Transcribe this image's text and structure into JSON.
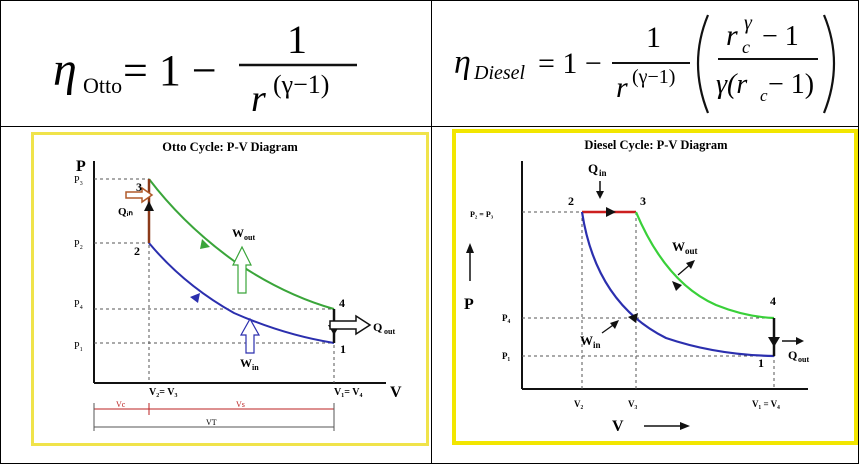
{
  "formulas": {
    "otto": {
      "eta": "η",
      "eta_sub": "Otto",
      "rhs": "= 1 −",
      "num": "1",
      "den_base": "r",
      "den_exp": "(γ−1)"
    },
    "diesel": {
      "eta": "η",
      "eta_sub": "Diesel",
      "rhs": "= 1 −",
      "num": "1",
      "den_base": "r",
      "den_exp": "(γ−1)",
      "paren_num_r": "r",
      "paren_num_sub": "c",
      "paren_num_sup": "γ",
      "paren_num_tail": "− 1",
      "paren_den": "γ(r",
      "paren_den_sub": "c",
      "paren_den_tail": " − 1)"
    }
  },
  "otto": {
    "title": "Otto Cycle: P-V Diagram",
    "p_axis": "P",
    "v_axis": "V",
    "p3": "P₃",
    "p2": "P₂",
    "p4": "P₄",
    "p1": "P₁",
    "pt1": "1",
    "pt2": "2",
    "pt3": "3",
    "pt4": "4",
    "qin": "Qᵢₙ",
    "qout": "Q",
    "qout_sub": "out",
    "wout": "W",
    "wout_sub": "out",
    "win": "W",
    "win_sub": "in",
    "v23": "V₂= V₃",
    "v14": "V₁= V₄",
    "vc": "Vc",
    "vs": "Vs",
    "vt": "VT"
  },
  "diesel": {
    "title": "Diesel Cycle: P-V Diagram",
    "p_axis": "P",
    "v_axis": "V",
    "p23": "P₂ = P₃",
    "p4": "P₄",
    "p1": "P₁",
    "pt1": "1",
    "pt2": "2",
    "pt3": "3",
    "pt4": "4",
    "qin": "Q",
    "qin_sub": "in",
    "qout": "Q",
    "qout_sub": "out",
    "wout": "W",
    "wout_sub": "out",
    "win": "W",
    "win_sub": "in",
    "v2": "V₂",
    "v3": "V₃",
    "v14": "V₁ = V₄"
  },
  "colors": {
    "expansion": "#3aa53a",
    "compression": "#2b2fae",
    "heat_add_otto": "#8b3a1a",
    "heat_add_diesel": "#cc1f1f",
    "diesel_expansion": "#39d039",
    "frame": "#f2e600"
  }
}
